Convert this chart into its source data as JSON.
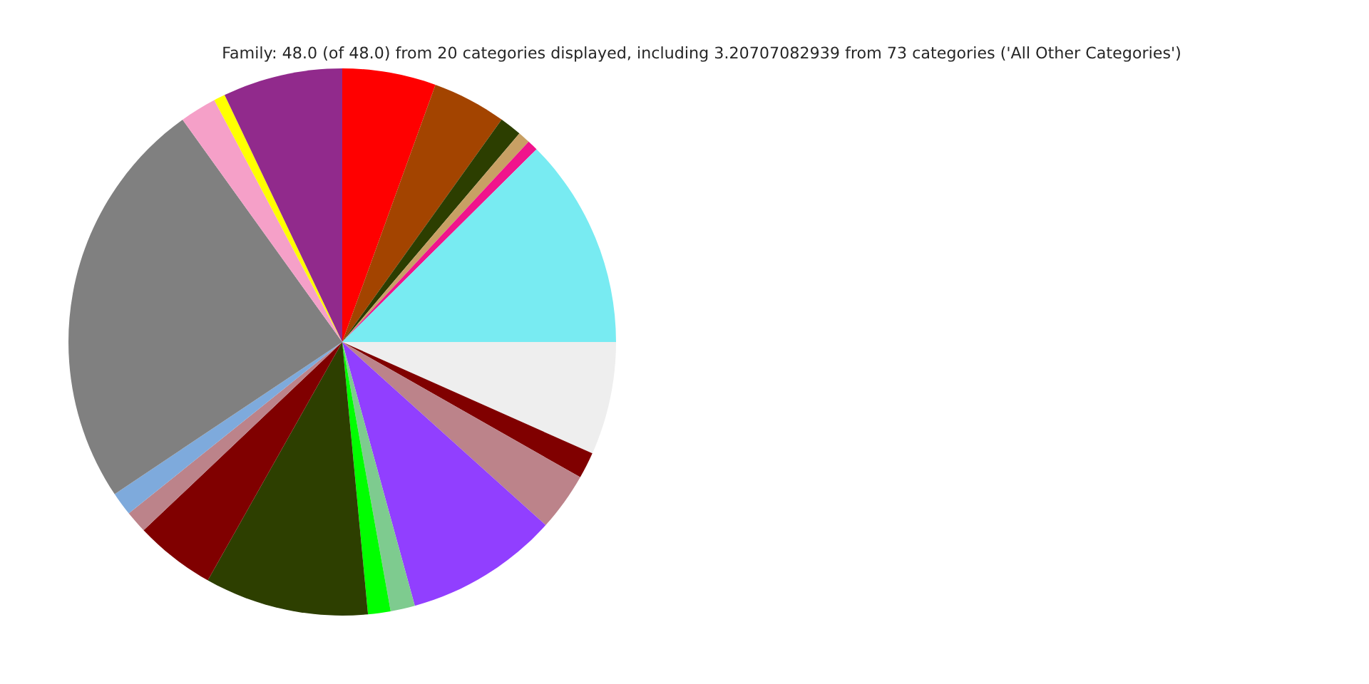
{
  "chart_data": {
    "type": "pie",
    "title": "Family: 48.0 (of 48.0) from 20 categories displayed, including 3.20707082939 from 73 categories ('All Other Categories')",
    "categories": [
      null,
      null,
      null,
      null,
      null,
      null,
      null,
      null,
      null,
      null,
      null,
      null,
      null,
      null,
      null,
      null,
      null,
      null,
      null,
      null
    ],
    "values": [
      5.53,
      4.36,
      1.31,
      0.72,
      0.64,
      12.44,
      6.67,
      1.56,
      3.44,
      9.06,
      1.44,
      1.33,
      9.67,
      4.75,
      1.31,
      1.39,
      24.47,
      2.17,
      0.67,
      7.07
    ],
    "colors": [
      "#ff0000",
      "#a34400",
      "#2c3e00",
      "#c8a064",
      "#f0148c",
      "#78ebf2",
      "#eeeeee",
      "#800000",
      "#bc838a",
      "#913fff",
      "#7ecb8f",
      "#00ff00",
      "#2d3f00",
      "#800000",
      "#bc838a",
      "#7eaadc",
      "#808080",
      "#f5a0c8",
      "#ffff00",
      "#912a8c"
    ]
  }
}
